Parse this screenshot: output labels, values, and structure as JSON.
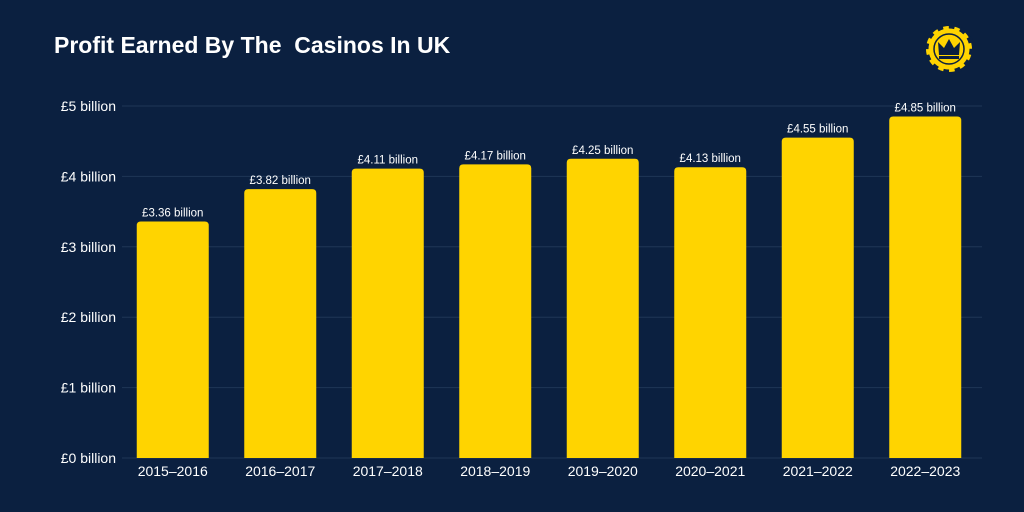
{
  "header": {
    "title": "Profit Earned By The  Casinos In UK",
    "logo_icon": "crown-chip-icon"
  },
  "colors": {
    "background": "#0b2040",
    "bar": "#ffd400",
    "grid": "#1f3656",
    "text": "#ffffff"
  },
  "chart_data": {
    "type": "bar",
    "title": "Profit Earned By The  Casinos In UK",
    "xlabel": "",
    "ylabel": "",
    "categories": [
      "2015–2016",
      "2016–2017",
      "2017–2018",
      "2018–2019",
      "2019–2020",
      "2020–2021",
      "2021–2022",
      "2022–2023"
    ],
    "values": [
      3.36,
      3.82,
      4.11,
      4.17,
      4.25,
      4.13,
      4.55,
      4.85
    ],
    "data_labels": [
      "£3.36 billion",
      "£3.82 billion",
      "£4.11 billion",
      "£4.17 billion",
      "£4.25 billion",
      "£4.13 billion",
      "£4.55 billion",
      "£4.85 billion"
    ],
    "yticks": [
      0,
      1,
      2,
      3,
      4,
      5
    ],
    "ytick_labels": [
      "£0 billion",
      "£1 billion",
      "£2 billion",
      "£3 billion",
      "£4 billion",
      "£5 billion"
    ],
    "ylim": [
      0,
      5
    ],
    "grid": true,
    "legend": "none"
  }
}
